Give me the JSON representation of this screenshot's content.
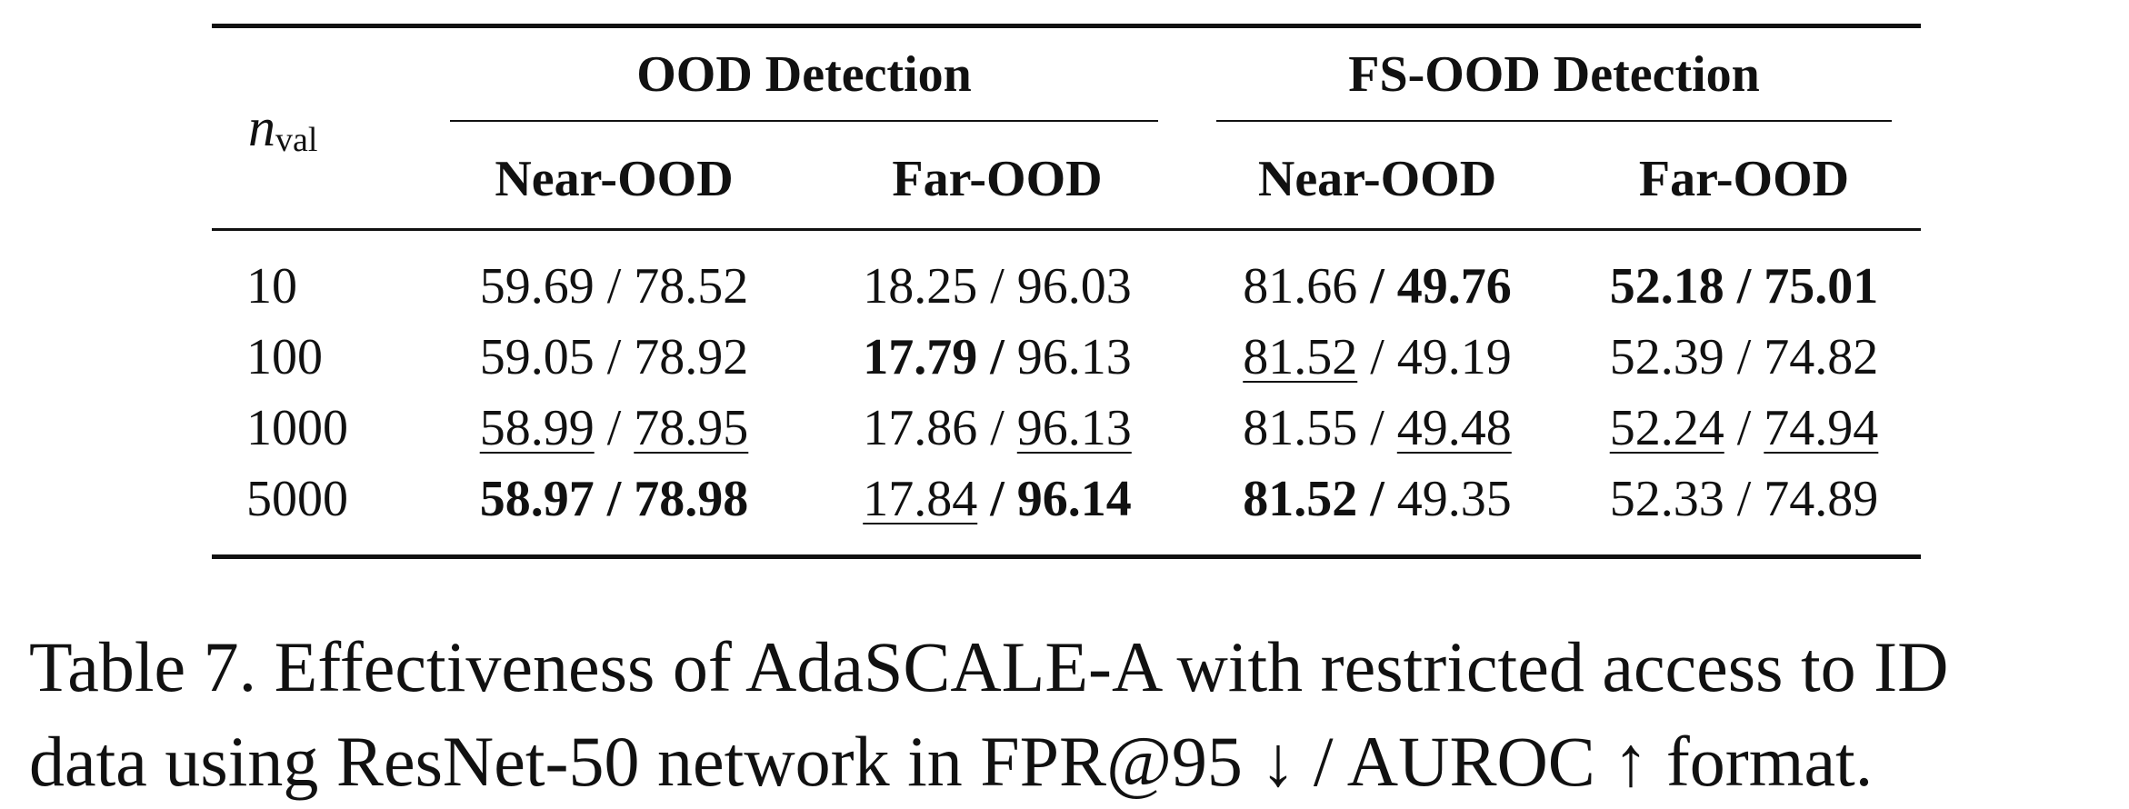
{
  "table": {
    "nval_symbol": "n",
    "nval_sub": "val",
    "groups": [
      "OOD Detection",
      "FS-OOD Detection"
    ],
    "subheads": [
      "Near-OOD",
      "Far-OOD",
      "Near-OOD",
      "Far-OOD"
    ],
    "rows": [
      {
        "n": "10",
        "cells": [
          {
            "a": "59.69",
            "a_style": "",
            "b": "78.52",
            "b_style": ""
          },
          {
            "a": "18.25",
            "a_style": "",
            "b": "96.03",
            "b_style": ""
          },
          {
            "a": "81.66",
            "a_style": "",
            "b": "49.76",
            "b_style": "bold"
          },
          {
            "a": "52.18",
            "a_style": "bold",
            "b": "75.01",
            "b_style": "bold"
          }
        ]
      },
      {
        "n": "100",
        "cells": [
          {
            "a": "59.05",
            "a_style": "",
            "b": "78.92",
            "b_style": ""
          },
          {
            "a": "17.79",
            "a_style": "bold",
            "b": "96.13",
            "b_style": ""
          },
          {
            "a": "81.52",
            "a_style": "underline",
            "b": "49.19",
            "b_style": ""
          },
          {
            "a": "52.39",
            "a_style": "",
            "b": "74.82",
            "b_style": ""
          }
        ]
      },
      {
        "n": "1000",
        "cells": [
          {
            "a": "58.99",
            "a_style": "underline",
            "b": "78.95",
            "b_style": "underline"
          },
          {
            "a": "17.86",
            "a_style": "",
            "b": "96.13",
            "b_style": "underline"
          },
          {
            "a": "81.55",
            "a_style": "",
            "b": "49.48",
            "b_style": "underline"
          },
          {
            "a": "52.24",
            "a_style": "underline",
            "b": "74.94",
            "b_style": "underline"
          }
        ]
      },
      {
        "n": "5000",
        "cells": [
          {
            "a": "58.97",
            "a_style": "bold",
            "b": "78.98",
            "b_style": "bold"
          },
          {
            "a": "17.84",
            "a_style": "underline",
            "b": "96.14",
            "b_style": "bold"
          },
          {
            "a": "81.52",
            "a_style": "bold",
            "b": "49.35",
            "b_style": ""
          },
          {
            "a": "52.33",
            "a_style": "",
            "b": "74.89",
            "b_style": ""
          }
        ]
      }
    ]
  },
  "caption": {
    "line1": "Table 7. Effectiveness of AdaSCALE-A with restricted access to ID",
    "line2": "data using ResNet-50 network in FPR@95 ↓ / AUROC ↑ format."
  }
}
